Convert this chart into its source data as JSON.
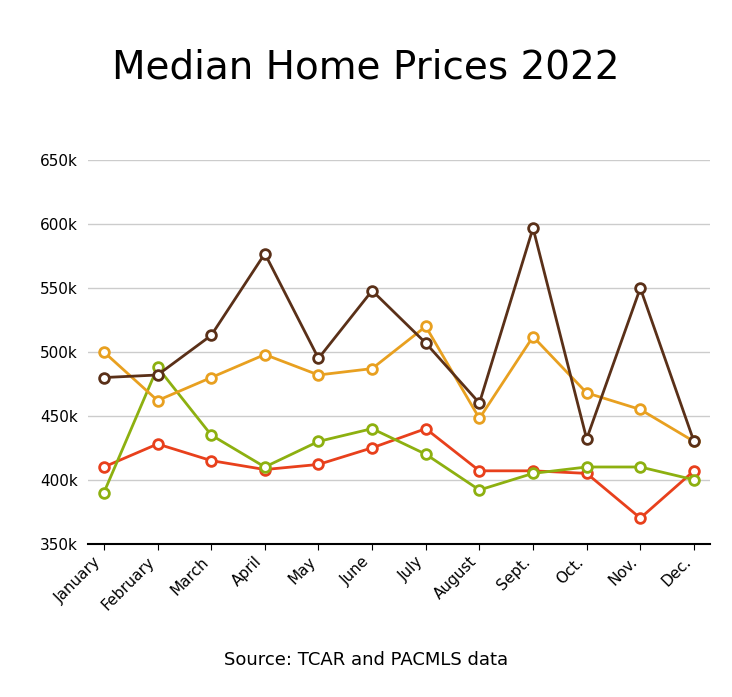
{
  "title": "Median Home Prices 2022",
  "months": [
    "January",
    "February",
    "March",
    "April",
    "May",
    "June",
    "July",
    "August",
    "Sept.",
    "Oct.",
    "Nov.",
    "Dec."
  ],
  "series": {
    "Kennewick": [
      410000,
      428000,
      415000,
      408000,
      412000,
      425000,
      440000,
      407000,
      407000,
      405000,
      370000,
      407000
    ],
    "Pasco": [
      390000,
      488000,
      435000,
      410000,
      430000,
      440000,
      420000,
      392000,
      405000,
      410000,
      410000,
      400000
    ],
    "Richland": [
      500000,
      462000,
      480000,
      498000,
      482000,
      487000,
      520000,
      448000,
      512000,
      468000,
      455000,
      430000
    ],
    "West Richland": [
      480000,
      482000,
      513000,
      577000,
      495000,
      548000,
      507000,
      460000,
      597000,
      432000,
      550000,
      430000
    ]
  },
  "colors": {
    "Kennewick": "#e8401c",
    "Pasco": "#8db010",
    "Richland": "#e8a020",
    "West Richland": "#5a3018"
  },
  "ylim": [
    350000,
    650000
  ],
  "yticks": [
    350000,
    400000,
    450000,
    500000,
    550000,
    600000,
    650000
  ],
  "ytick_labels": [
    "350k",
    "400k",
    "450k",
    "500k",
    "550k",
    "600k",
    "650k"
  ],
  "source_text": "Source: TCAR and PACMLS data",
  "grid_color": "#cccccc",
  "figsize": [
    7.32,
    6.97
  ],
  "dpi": 100
}
